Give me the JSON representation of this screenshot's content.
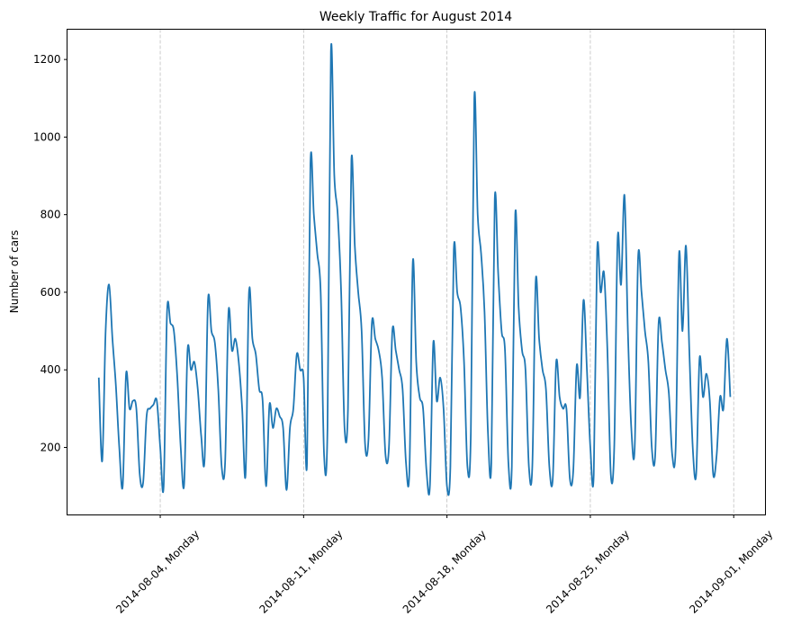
{
  "chart_data": {
    "type": "line",
    "title": "Weekly Traffic for August 2014",
    "xlabel": "",
    "ylabel": "Number of cars",
    "xlim": [
      "2014-07-30 10:48",
      "2014-09-02 13:12"
    ],
    "ylim": [
      26,
      1278
    ],
    "yticks": [
      200,
      400,
      600,
      800,
      1000,
      1200
    ],
    "xticks": [
      {
        "date": "2014-08-04",
        "label": "2014-08-04, Monday"
      },
      {
        "date": "2014-08-11",
        "label": "2014-08-11, Monday"
      },
      {
        "date": "2014-08-18",
        "label": "2014-08-18, Monday"
      },
      {
        "date": "2014-08-25",
        "label": "2014-08-25, Monday"
      },
      {
        "date": "2014-09-01",
        "label": "2014-09-01, Monday"
      }
    ],
    "grid": "vertical dashed at x ticks",
    "line_color": "#1f77b4",
    "grid_color": "#c0c0c0",
    "hours_of_day": [
      0,
      4,
      8,
      12,
      16,
      20
    ],
    "days": [
      {
        "date": "2014-08-01",
        "values": [
          380,
          165,
          500,
          620,
          480,
          360
        ]
      },
      {
        "date": "2014-08-02",
        "values": [
          200,
          100,
          390,
          300,
          320,
          300
        ]
      },
      {
        "date": "2014-08-03",
        "values": [
          130,
          110,
          280,
          300,
          310,
          320
        ]
      },
      {
        "date": "2014-08-04",
        "values": [
          200,
          100,
          550,
          520,
          500,
          380
        ]
      },
      {
        "date": "2014-08-05",
        "values": [
          200,
          105,
          450,
          400,
          420,
          350
        ]
      },
      {
        "date": "2014-08-06",
        "values": [
          230,
          170,
          580,
          500,
          470,
          350
        ]
      },
      {
        "date": "2014-08-07",
        "values": [
          150,
          160,
          550,
          450,
          480,
          420
        ]
      },
      {
        "date": "2014-08-08",
        "values": [
          300,
          130,
          600,
          480,
          440,
          350
        ]
      },
      {
        "date": "2014-08-09",
        "values": [
          320,
          100,
          310,
          250,
          300,
          280
        ]
      },
      {
        "date": "2014-08-10",
        "values": [
          250,
          90,
          250,
          300,
          440,
          400
        ]
      },
      {
        "date": "2014-08-11",
        "values": [
          380,
          160,
          930,
          800,
          700,
          600
        ]
      },
      {
        "date": "2014-08-12",
        "values": [
          180,
          250,
          1220,
          900,
          800,
          600
        ]
      },
      {
        "date": "2014-08-13",
        "values": [
          250,
          300,
          940,
          720,
          600,
          500
        ]
      },
      {
        "date": "2014-08-14",
        "values": [
          210,
          220,
          520,
          480,
          450,
          380
        ]
      },
      {
        "date": "2014-08-15",
        "values": [
          180,
          200,
          500,
          450,
          400,
          350
        ]
      },
      {
        "date": "2014-08-16",
        "values": [
          160,
          140,
          680,
          420,
          330,
          300
        ]
      },
      {
        "date": "2014-08-17",
        "values": [
          140,
          100,
          470,
          320,
          380,
          300
        ]
      },
      {
        "date": "2014-08-18",
        "values": [
          100,
          150,
          710,
          600,
          560,
          420
        ]
      },
      {
        "date": "2014-08-19",
        "values": [
          150,
          240,
          1100,
          800,
          700,
          550
        ]
      },
      {
        "date": "2014-08-20",
        "values": [
          240,
          160,
          840,
          650,
          500,
          450
        ]
      },
      {
        "date": "2014-08-21",
        "values": [
          160,
          150,
          800,
          560,
          450,
          400
        ]
      },
      {
        "date": "2014-08-22",
        "values": [
          150,
          150,
          630,
          480,
          400,
          350
        ]
      },
      {
        "date": "2014-08-23",
        "values": [
          150,
          120,
          420,
          330,
          300,
          300
        ]
      },
      {
        "date": "2014-08-24",
        "values": [
          120,
          140,
          410,
          330,
          580,
          400
        ]
      },
      {
        "date": "2014-08-25",
        "values": [
          200,
          130,
          710,
          600,
          650,
          450
        ]
      },
      {
        "date": "2014-08-26",
        "values": [
          130,
          200,
          740,
          620,
          850,
          500
        ]
      },
      {
        "date": "2014-08-27",
        "values": [
          250,
          200,
          690,
          600,
          500,
          420
        ]
      },
      {
        "date": "2014-08-28",
        "values": [
          200,
          180,
          520,
          470,
          400,
          340
        ]
      },
      {
        "date": "2014-08-29",
        "values": [
          180,
          200,
          700,
          500,
          720,
          450
        ]
      },
      {
        "date": "2014-08-30",
        "values": [
          200,
          130,
          430,
          330,
          390,
          320
        ]
      },
      {
        "date": "2014-08-31",
        "values": [
          130,
          180,
          330,
          300,
          480,
          330
        ]
      }
    ]
  }
}
